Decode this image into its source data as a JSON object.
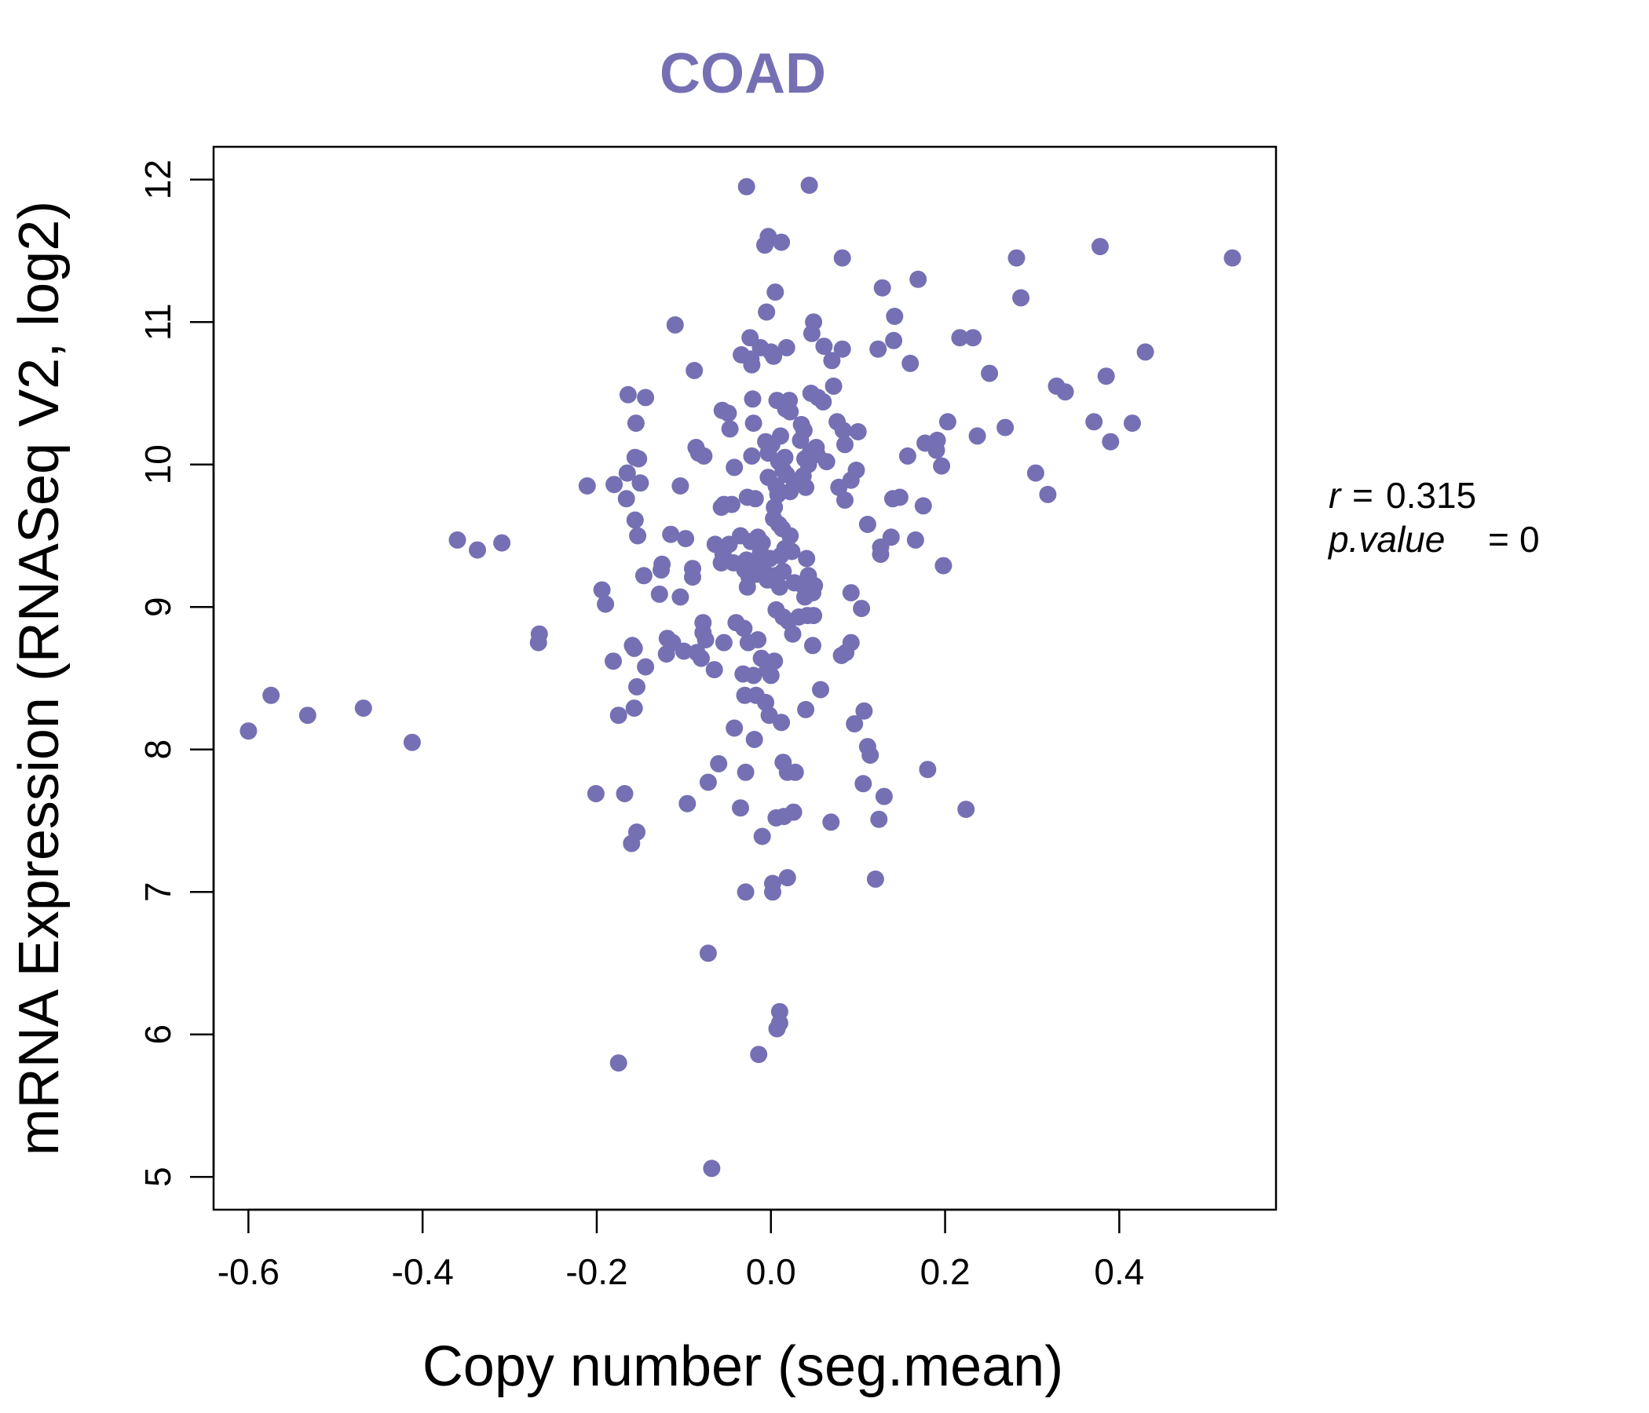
{
  "chart_data": {
    "type": "scatter",
    "title": "COAD",
    "xlabel": "Copy number (seg.mean)",
    "ylabel": "mRNA Expression (RNASeq V2, log2)",
    "xlim": [
      -0.64,
      0.58
    ],
    "ylim": [
      4.77,
      12.23
    ],
    "x_ticks": [
      -0.6,
      -0.4,
      -0.2,
      0.0,
      0.2,
      0.4
    ],
    "x_tick_labels": [
      "-0.6",
      "-0.4",
      "-0.2",
      "0.0",
      "0.2",
      "0.4"
    ],
    "y_ticks": [
      5,
      6,
      7,
      8,
      9,
      10,
      11,
      12
    ],
    "y_tick_labels": [
      "5",
      "6",
      "7",
      "8",
      "9",
      "10",
      "11",
      "12"
    ],
    "grid": false,
    "point_color": "#7570b3",
    "annotations": {
      "r_label": "r",
      "r_value": "0.315",
      "p_label": "p.value",
      "p_value": "0"
    },
    "points": [
      [
        -0.6,
        8.13
      ],
      [
        -0.574,
        8.38
      ],
      [
        -0.532,
        8.24
      ],
      [
        -0.468,
        8.29
      ],
      [
        -0.412,
        8.05
      ],
      [
        -0.36,
        9.47
      ],
      [
        -0.337,
        9.4
      ],
      [
        -0.309,
        9.45
      ],
      [
        -0.266,
        8.81
      ],
      [
        -0.267,
        8.75
      ],
      [
        -0.211,
        9.85
      ],
      [
        -0.201,
        7.69
      ],
      [
        -0.194,
        9.12
      ],
      [
        -0.19,
        9.02
      ],
      [
        -0.181,
        8.62
      ],
      [
        -0.18,
        9.86
      ],
      [
        -0.175,
        8.24
      ],
      [
        -0.175,
        5.8
      ],
      [
        -0.168,
        7.69
      ],
      [
        -0.166,
        9.76
      ],
      [
        -0.165,
        9.94
      ],
      [
        -0.164,
        10.49
      ],
      [
        -0.16,
        7.34
      ],
      [
        -0.159,
        8.73
      ],
      [
        -0.157,
        8.29
      ],
      [
        -0.157,
        8.71
      ],
      [
        -0.156,
        10.05
      ],
      [
        -0.156,
        9.61
      ],
      [
        -0.155,
        10.29
      ],
      [
        -0.154,
        7.42
      ],
      [
        -0.154,
        8.44
      ],
      [
        -0.153,
        9.5
      ],
      [
        -0.152,
        10.04
      ],
      [
        -0.15,
        9.87
      ],
      [
        -0.146,
        9.22
      ],
      [
        -0.144,
        10.47
      ],
      [
        -0.144,
        8.58
      ],
      [
        -0.128,
        9.09
      ],
      [
        -0.126,
        9.26
      ],
      [
        -0.125,
        9.3
      ],
      [
        -0.12,
        8.67
      ],
      [
        -0.119,
        8.78
      ],
      [
        -0.115,
        9.51
      ],
      [
        -0.113,
        8.75
      ],
      [
        -0.11,
        10.98
      ],
      [
        -0.104,
        9.07
      ],
      [
        -0.104,
        9.85
      ],
      [
        -0.1,
        8.69
      ],
      [
        -0.098,
        9.48
      ],
      [
        -0.096,
        7.62
      ],
      [
        -0.09,
        9.21
      ],
      [
        -0.09,
        9.27
      ],
      [
        -0.088,
        10.66
      ],
      [
        -0.086,
        10.12
      ],
      [
        -0.085,
        8.68
      ],
      [
        -0.083,
        10.08
      ],
      [
        -0.08,
        8.64
      ],
      [
        -0.078,
        8.89
      ],
      [
        -0.078,
        8.82
      ],
      [
        -0.077,
        10.06
      ],
      [
        -0.075,
        8.77
      ],
      [
        -0.072,
        7.77
      ],
      [
        -0.072,
        6.57
      ],
      [
        -0.068,
        5.06
      ],
      [
        -0.065,
        8.56
      ],
      [
        -0.064,
        9.44
      ],
      [
        -0.06,
        7.9
      ],
      [
        -0.057,
        9.7
      ],
      [
        -0.057,
        9.31
      ],
      [
        -0.056,
        10.38
      ],
      [
        -0.055,
        9.37
      ],
      [
        -0.054,
        9.72
      ],
      [
        -0.054,
        8.75
      ],
      [
        -0.049,
        10.36
      ],
      [
        -0.048,
        9.44
      ],
      [
        -0.047,
        10.25
      ],
      [
        -0.045,
        9.72
      ],
      [
        -0.043,
        9.31
      ],
      [
        -0.042,
        8.15
      ],
      [
        -0.042,
        9.98
      ],
      [
        -0.04,
        8.89
      ],
      [
        -0.035,
        7.59
      ],
      [
        -0.035,
        9.5
      ],
      [
        -0.034,
        10.77
      ],
      [
        -0.032,
        8.53
      ],
      [
        -0.031,
        8.85
      ],
      [
        -0.03,
        9.26
      ],
      [
        -0.03,
        8.38
      ],
      [
        -0.029,
        7.84
      ],
      [
        -0.029,
        7.0
      ],
      [
        -0.028,
        9.33
      ],
      [
        -0.028,
        11.95
      ],
      [
        -0.027,
        9.14
      ],
      [
        -0.027,
        9.77
      ],
      [
        -0.026,
        8.75
      ],
      [
        -0.025,
        9.21
      ],
      [
        -0.024,
        10.89
      ],
      [
        -0.023,
        9.46
      ],
      [
        -0.023,
        10.74
      ],
      [
        -0.022,
        10.7
      ],
      [
        -0.022,
        10.06
      ],
      [
        -0.021,
        10.46
      ],
      [
        -0.02,
        10.29
      ],
      [
        -0.02,
        8.52
      ],
      [
        -0.019,
        9.31
      ],
      [
        -0.019,
        8.07
      ],
      [
        -0.018,
        9.76
      ],
      [
        -0.017,
        8.38
      ],
      [
        -0.016,
        9.23
      ],
      [
        -0.015,
        8.77
      ],
      [
        -0.015,
        9.49
      ],
      [
        -0.014,
        5.86
      ],
      [
        -0.012,
        9.38
      ],
      [
        -0.012,
        10.82
      ],
      [
        -0.011,
        8.64
      ],
      [
        -0.01,
        7.39
      ],
      [
        -0.01,
        9.45
      ],
      [
        -0.008,
        9.25
      ],
      [
        -0.007,
        11.54
      ],
      [
        -0.006,
        8.33
      ],
      [
        -0.006,
        10.16
      ],
      [
        -0.005,
        11.07
      ],
      [
        -0.004,
        9.19
      ],
      [
        -0.004,
        8.56
      ],
      [
        -0.003,
        10.08
      ],
      [
        -0.003,
        11.6
      ],
      [
        -0.003,
        9.91
      ],
      [
        -0.002,
        8.24
      ],
      [
        -0.001,
        9.34
      ],
      [
        0.0,
        10.79
      ],
      [
        0.0,
        8.52
      ],
      [
        0.001,
        10.14
      ],
      [
        0.002,
        7.06
      ],
      [
        0.002,
        7.0
      ],
      [
        0.002,
        9.19
      ],
      [
        0.003,
        9.62
      ],
      [
        0.003,
        10.76
      ],
      [
        0.004,
        8.62
      ],
      [
        0.004,
        9.7
      ],
      [
        0.005,
        9.22
      ],
      [
        0.005,
        11.21
      ],
      [
        0.006,
        9.85
      ],
      [
        0.006,
        8.98
      ],
      [
        0.006,
        7.52
      ],
      [
        0.007,
        6.04
      ],
      [
        0.007,
        10.45
      ],
      [
        0.008,
        9.79
      ],
      [
        0.009,
        10.02
      ],
      [
        0.009,
        9.58
      ],
      [
        0.01,
        6.08
      ],
      [
        0.01,
        6.16
      ],
      [
        0.01,
        9.14
      ],
      [
        0.011,
        10.2
      ],
      [
        0.011,
        9.36
      ],
      [
        0.012,
        11.56
      ],
      [
        0.012,
        8.19
      ],
      [
        0.013,
        9.55
      ],
      [
        0.014,
        9.96
      ],
      [
        0.014,
        8.93
      ],
      [
        0.014,
        9.25
      ],
      [
        0.014,
        7.91
      ],
      [
        0.015,
        7.53
      ],
      [
        0.016,
        10.05
      ],
      [
        0.016,
        9.41
      ],
      [
        0.017,
        10.39
      ],
      [
        0.018,
        10.82
      ],
      [
        0.018,
        9.93
      ],
      [
        0.019,
        7.84
      ],
      [
        0.019,
        7.1
      ],
      [
        0.02,
        8.9
      ],
      [
        0.021,
        10.45
      ],
      [
        0.022,
        10.37
      ],
      [
        0.022,
        9.81
      ],
      [
        0.022,
        9.5
      ],
      [
        0.024,
        9.39
      ],
      [
        0.025,
        8.81
      ],
      [
        0.026,
        7.56
      ],
      [
        0.027,
        9.17
      ],
      [
        0.027,
        9.88
      ],
      [
        0.028,
        7.84
      ],
      [
        0.032,
        8.93
      ],
      [
        0.034,
        10.17
      ],
      [
        0.035,
        10.28
      ],
      [
        0.037,
        9.92
      ],
      [
        0.037,
        9.15
      ],
      [
        0.038,
        10.24
      ],
      [
        0.039,
        9.07
      ],
      [
        0.039,
        10.04
      ],
      [
        0.04,
        9.84
      ],
      [
        0.04,
        8.28
      ],
      [
        0.041,
        9.34
      ],
      [
        0.042,
        8.94
      ],
      [
        0.043,
        10.0
      ],
      [
        0.043,
        9.22
      ],
      [
        0.044,
        11.96
      ],
      [
        0.045,
        10.08
      ],
      [
        0.046,
        10.5
      ],
      [
        0.047,
        10.92
      ],
      [
        0.048,
        8.73
      ],
      [
        0.048,
        9.1
      ],
      [
        0.049,
        11.0
      ],
      [
        0.049,
        8.94
      ],
      [
        0.05,
        9.15
      ],
      [
        0.052,
        10.12
      ],
      [
        0.053,
        10.07
      ],
      [
        0.054,
        10.47
      ],
      [
        0.057,
        8.42
      ],
      [
        0.06,
        10.44
      ],
      [
        0.061,
        10.83
      ],
      [
        0.064,
        10.02
      ],
      [
        0.069,
        7.49
      ],
      [
        0.07,
        10.73
      ],
      [
        0.072,
        10.55
      ],
      [
        0.076,
        10.3
      ],
      [
        0.078,
        9.84
      ],
      [
        0.081,
        8.66
      ],
      [
        0.082,
        11.45
      ],
      [
        0.082,
        10.81
      ],
      [
        0.083,
        10.24
      ],
      [
        0.085,
        10.14
      ],
      [
        0.085,
        9.75
      ],
      [
        0.086,
        8.68
      ],
      [
        0.092,
        9.89
      ],
      [
        0.092,
        8.75
      ],
      [
        0.092,
        9.1
      ],
      [
        0.096,
        8.18
      ],
      [
        0.098,
        9.96
      ],
      [
        0.1,
        10.23
      ],
      [
        0.104,
        8.99
      ],
      [
        0.106,
        7.76
      ],
      [
        0.107,
        8.27
      ],
      [
        0.111,
        9.58
      ],
      [
        0.111,
        8.02
      ],
      [
        0.114,
        7.96
      ],
      [
        0.12,
        7.09
      ],
      [
        0.123,
        10.81
      ],
      [
        0.124,
        7.51
      ],
      [
        0.126,
        9.37
      ],
      [
        0.126,
        9.42
      ],
      [
        0.128,
        11.24
      ],
      [
        0.13,
        7.67
      ],
      [
        0.138,
        9.49
      ],
      [
        0.14,
        9.76
      ],
      [
        0.141,
        10.87
      ],
      [
        0.142,
        11.04
      ],
      [
        0.148,
        9.77
      ],
      [
        0.157,
        10.06
      ],
      [
        0.16,
        10.71
      ],
      [
        0.166,
        9.47
      ],
      [
        0.169,
        11.3
      ],
      [
        0.175,
        9.71
      ],
      [
        0.177,
        10.15
      ],
      [
        0.18,
        7.86
      ],
      [
        0.19,
        10.1
      ],
      [
        0.191,
        10.17
      ],
      [
        0.196,
        9.99
      ],
      [
        0.198,
        9.29
      ],
      [
        0.203,
        10.3
      ],
      [
        0.217,
        10.89
      ],
      [
        0.224,
        7.58
      ],
      [
        0.232,
        10.89
      ],
      [
        0.237,
        10.2
      ],
      [
        0.251,
        10.64
      ],
      [
        0.269,
        10.26
      ],
      [
        0.282,
        11.45
      ],
      [
        0.287,
        11.17
      ],
      [
        0.304,
        9.94
      ],
      [
        0.318,
        9.79
      ],
      [
        0.328,
        10.55
      ],
      [
        0.338,
        10.51
      ],
      [
        0.371,
        10.3
      ],
      [
        0.378,
        11.53
      ],
      [
        0.385,
        10.62
      ],
      [
        0.39,
        10.16
      ],
      [
        0.415,
        10.29
      ],
      [
        0.43,
        10.79
      ],
      [
        0.53,
        11.45
      ]
    ]
  }
}
